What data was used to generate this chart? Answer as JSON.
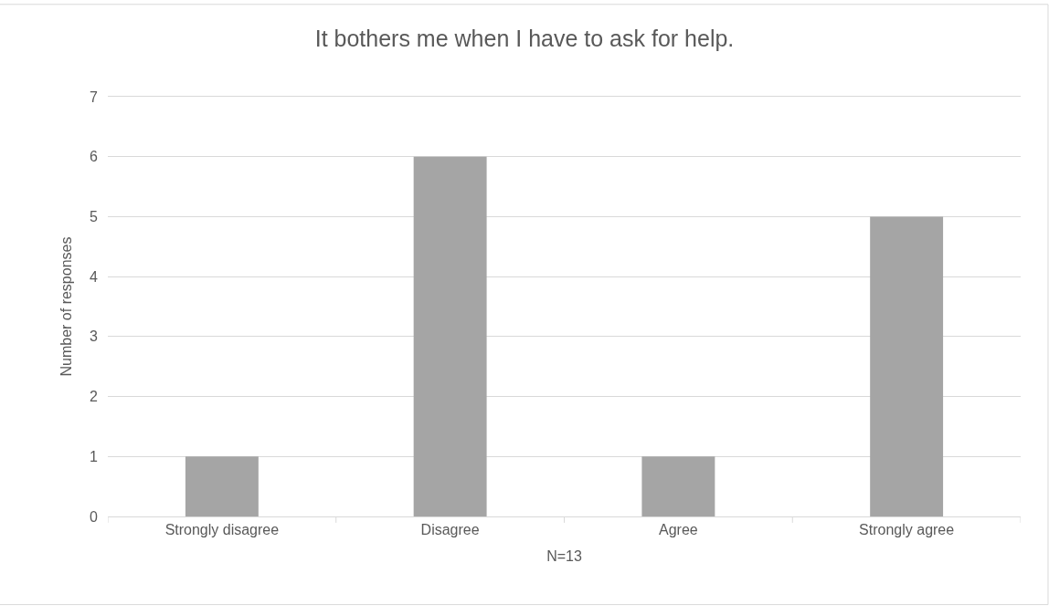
{
  "chart_data": {
    "type": "bar",
    "title": "It bothers me when I have to ask for help.",
    "xlabel": "N=13",
    "ylabel": "Number of responses",
    "categories": [
      "Strongly disagree",
      "Disagree",
      "Agree",
      "Strongly agree"
    ],
    "values": [
      1,
      6,
      1,
      5
    ],
    "color": "#a5a5a5",
    "ylim": [
      0,
      7
    ],
    "yticks": [
      0,
      1,
      2,
      3,
      4,
      5,
      6,
      7
    ],
    "grid": "y"
  }
}
